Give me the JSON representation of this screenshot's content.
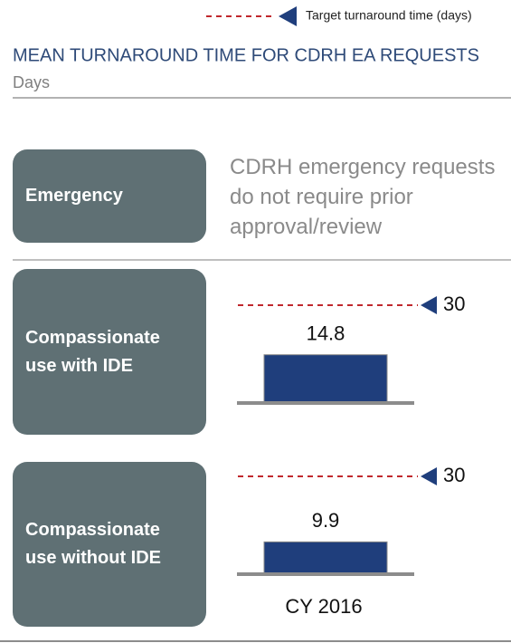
{
  "chart_data": {
    "type": "bar",
    "title": "MEAN TURNAROUND TIME FOR CDRH EA REQUESTS",
    "subtitle": "Days",
    "legend": "Target turnaround time (days)",
    "categories": [
      "Emergency",
      "Compassionate use with IDE",
      "Compassionate use without IDE"
    ],
    "note": "CDRH emergency requests do not require prior approval/review",
    "values": [
      null,
      14.8,
      9.9
    ],
    "targets": [
      null,
      30,
      30
    ],
    "x_label": "CY 2016",
    "color": "#1f3e7c",
    "target_color": "#c0282d",
    "panel_color": "#5f7074"
  }
}
